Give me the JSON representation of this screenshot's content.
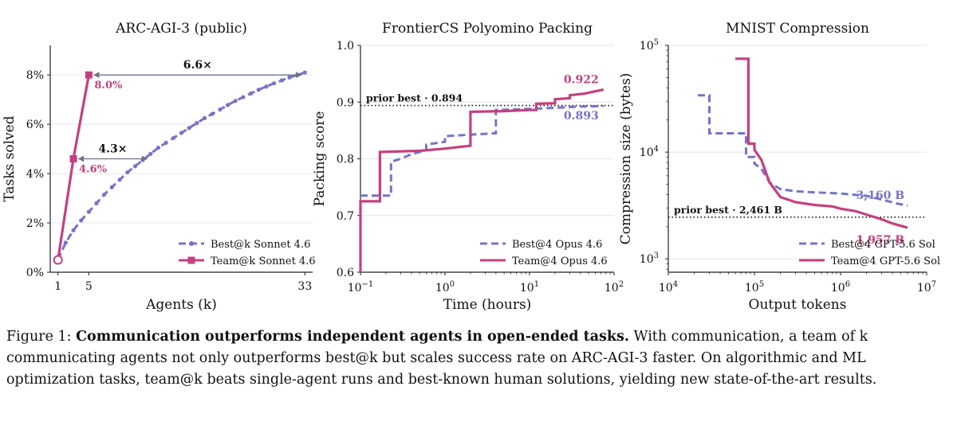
{
  "colors": {
    "best": "#7474c8",
    "team": "#c4407e",
    "grid": "#e6e6e6",
    "axis": "#222222"
  },
  "chart_data": [
    {
      "type": "line",
      "title": "ARC-AGI-3 (public)",
      "xlabel": "Agents (k)",
      "ylabel": "Tasks solved",
      "xlim": [
        0,
        34
      ],
      "ylim": [
        0,
        9.2
      ],
      "xticks": [
        {
          "value": 1,
          "label": "1"
        },
        {
          "value": 5,
          "label": "5"
        },
        {
          "value": 33,
          "label": "33"
        }
      ],
      "yticks": [
        {
          "value": 0,
          "label": "0%"
        },
        {
          "value": 2,
          "label": "2%"
        },
        {
          "value": 4,
          "label": "4%"
        },
        {
          "value": 6,
          "label": "6%"
        },
        {
          "value": 8,
          "label": "8%"
        }
      ],
      "grid": "y",
      "series": [
        {
          "name": "Best@k Sonnet 4.6",
          "style": "dashed",
          "marker": "dot",
          "x": [
            1,
            2,
            3,
            4,
            5,
            6,
            7,
            8,
            9,
            10,
            11,
            12,
            13,
            14,
            15,
            16,
            17,
            18,
            19,
            20,
            21,
            22,
            23,
            24,
            25,
            26,
            27,
            28,
            29,
            30,
            31,
            32,
            33
          ],
          "y": [
            0.5,
            1.2,
            1.7,
            2.1,
            2.45,
            2.8,
            3.15,
            3.45,
            3.75,
            4.05,
            4.3,
            4.55,
            4.8,
            5.05,
            5.25,
            5.45,
            5.65,
            5.85,
            6.05,
            6.25,
            6.42,
            6.6,
            6.78,
            6.95,
            7.1,
            7.25,
            7.4,
            7.53,
            7.66,
            7.78,
            7.9,
            8.0,
            8.1
          ]
        },
        {
          "name": "Team@k Sonnet 4.6",
          "style": "solid",
          "marker": "square",
          "x": [
            1,
            3,
            5
          ],
          "y": [
            0.5,
            4.6,
            8.0
          ]
        }
      ],
      "annotations": [
        {
          "text": "8.0%",
          "x": 5,
          "y": 8.0,
          "series": "Team@k Sonnet 4.6"
        },
        {
          "text": "4.6%",
          "x": 3,
          "y": 4.6,
          "series": "Team@k Sonnet 4.6"
        },
        {
          "text": "6.6×",
          "from_x": 5,
          "to_x": 33,
          "y": 8.0
        },
        {
          "text": "4.3×",
          "from_x": 3,
          "to_x": 13,
          "y": 4.6
        }
      ],
      "legend": "bottom-right"
    },
    {
      "type": "line",
      "title": "FrontierCS Polyomino Packing",
      "xlabel": "Time (hours)",
      "ylabel": "Packing score",
      "xscale": "log",
      "xlim": [
        0.1,
        100
      ],
      "ylim": [
        0.6,
        1.0
      ],
      "xticks": [
        {
          "value": 0.1,
          "base": "10",
          "exp": "−1"
        },
        {
          "value": 1,
          "base": "10",
          "exp": "0"
        },
        {
          "value": 10,
          "base": "10",
          "exp": "1"
        },
        {
          "value": 100,
          "base": "10",
          "exp": "2"
        }
      ],
      "yticks": [
        {
          "value": 0.6,
          "label": "0.6"
        },
        {
          "value": 0.7,
          "label": "0.7"
        },
        {
          "value": 0.8,
          "label": "0.8"
        },
        {
          "value": 0.9,
          "label": "0.9"
        },
        {
          "value": 1.0,
          "label": "1.0"
        }
      ],
      "grid": "y",
      "reference_line": {
        "value": 0.894,
        "label": "prior best · 0.894"
      },
      "series": [
        {
          "name": "Best@4 Opus 4.6",
          "style": "dashed",
          "step": true,
          "x": [
            0.1,
            0.23,
            0.23,
            0.3,
            0.4,
            0.6,
            0.6,
            1.0,
            1.0,
            4.0,
            4.0,
            10,
            20,
            40,
            75
          ],
          "y": [
            0.735,
            0.735,
            0.795,
            0.8,
            0.808,
            0.815,
            0.825,
            0.83,
            0.84,
            0.845,
            0.886,
            0.888,
            0.89,
            0.892,
            0.893
          ]
        },
        {
          "name": "Team@4 Opus 4.6",
          "style": "solid",
          "step": true,
          "x": [
            0.1,
            0.1,
            0.17,
            0.17,
            0.5,
            1.0,
            2.0,
            2.0,
            5.0,
            10,
            12,
            12,
            20,
            20,
            30,
            30,
            45,
            60,
            75
          ],
          "y": [
            0.6,
            0.725,
            0.725,
            0.812,
            0.814,
            0.818,
            0.823,
            0.883,
            0.884,
            0.886,
            0.886,
            0.897,
            0.898,
            0.905,
            0.907,
            0.912,
            0.915,
            0.919,
            0.922
          ]
        }
      ],
      "annotations": [
        {
          "text": "0.922",
          "x": 75,
          "y": 0.922,
          "series": "Team@4 Opus 4.6"
        },
        {
          "text": "0.893",
          "x": 75,
          "y": 0.893,
          "series": "Best@4 Opus 4.6"
        }
      ],
      "legend": "bottom-right"
    },
    {
      "type": "line",
      "title": "MNIST Compression",
      "xlabel": "Output tokens",
      "ylabel": "Compression size (bytes)",
      "xscale": "log",
      "yscale": "log",
      "xlim": [
        10000,
        10000000
      ],
      "ylim": [
        750,
        100000
      ],
      "xticks": [
        {
          "value": 10000,
          "base": "10",
          "exp": "4"
        },
        {
          "value": 100000,
          "base": "10",
          "exp": "5"
        },
        {
          "value": 1000000,
          "base": "10",
          "exp": "6"
        },
        {
          "value": 10000000,
          "base": "10",
          "exp": "7"
        }
      ],
      "yticks": [
        {
          "value": 1000,
          "base": "10",
          "exp": "3"
        },
        {
          "value": 10000,
          "base": "10",
          "exp": "4"
        },
        {
          "value": 100000,
          "base": "10",
          "exp": "5"
        }
      ],
      "grid": "y",
      "reference_line": {
        "value": 2461,
        "label": "prior best · 2,461 B"
      },
      "series": [
        {
          "name": "Best@4 GPT-5.6 Sol",
          "style": "dashed",
          "step": true,
          "x": [
            22000,
            30000,
            30000,
            80000,
            80000,
            100000,
            100000,
            120000,
            150000,
            200000,
            300000,
            500000,
            1000000,
            2000000,
            3000000,
            4500000,
            6000000
          ],
          "y": [
            34000,
            34000,
            15000,
            15000,
            9000,
            9000,
            7800,
            7000,
            5200,
            4500,
            4300,
            4200,
            4100,
            3900,
            3600,
            3300,
            3160
          ]
        },
        {
          "name": "Team@4 GPT-5.6 Sol",
          "style": "solid",
          "step": true,
          "x": [
            60000,
            85000,
            85000,
            100000,
            100000,
            120000,
            150000,
            200000,
            300000,
            500000,
            800000,
            1000000,
            1500000,
            2000000,
            3000000,
            4000000,
            6000000
          ],
          "y": [
            75000,
            75000,
            12000,
            12000,
            10500,
            8500,
            5200,
            3800,
            3400,
            3200,
            3100,
            2950,
            2800,
            2600,
            2350,
            2150,
            1957
          ]
        }
      ],
      "annotations": [
        {
          "text": "3,160 B",
          "x": 6000000,
          "y": 3160,
          "series": "Best@4 GPT-5.6 Sol"
        },
        {
          "text": "1,957 B",
          "x": 6000000,
          "y": 1957,
          "series": "Team@4 GPT-5.6 Sol"
        }
      ],
      "legend": "bottom-right"
    }
  ],
  "caption": {
    "label": "Figure 1: ",
    "bold": "Communication outperforms independent agents in open-ended tasks.",
    "text": " With communication, a team of k communicating agents not only outperforms best@k but scales success rate on ARC-AGI-3 faster. On algorithmic and ML optimization tasks, team@k beats single-agent runs and best-known human solutions, yielding new state-of-the-art results."
  }
}
